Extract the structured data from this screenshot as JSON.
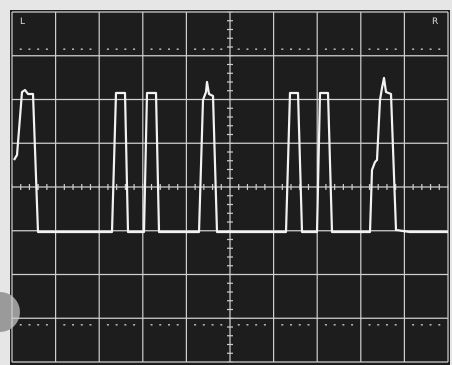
{
  "screen": {
    "left_label": "L",
    "right_label": "R"
  }
}
